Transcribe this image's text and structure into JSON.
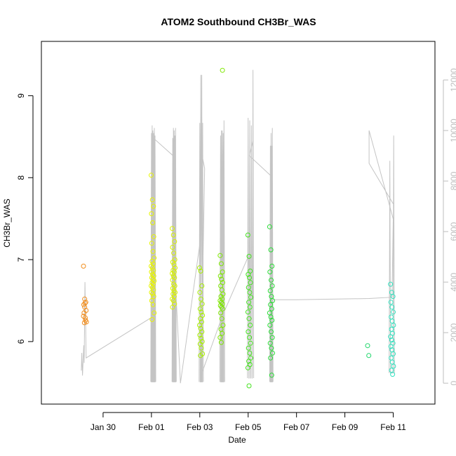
{
  "chart_data": {
    "type": "scatter",
    "title": "ATOM2 Southbound CH3Br_WAS",
    "xlabel": "Date",
    "ylabel": "CH3Br_WAS",
    "x_ticks": [
      {
        "day": 29,
        "label": "Jan 30"
      },
      {
        "day": 31,
        "label": "Feb 01"
      },
      {
        "day": 33,
        "label": "Feb 03"
      },
      {
        "day": 35,
        "label": "Feb 05"
      },
      {
        "day": 37,
        "label": "Feb 07"
      },
      {
        "day": 39,
        "label": "Feb 09"
      },
      {
        "day": 41,
        "label": "Feb 11"
      }
    ],
    "xlim": [
      27.0,
      42.0
    ],
    "ylim": [
      5.4,
      9.5
    ],
    "y_ticks": [
      "6",
      "7",
      "8",
      "9"
    ],
    "y2lim": [
      -300,
      13000
    ],
    "y2_ticks": [
      "0",
      "2000",
      "4000",
      "6000",
      "8000",
      "10000",
      "12000"
    ],
    "point_groups": [
      {
        "center": 28.25,
        "color": "#f28e1e",
        "values": [
          6.92,
          6.52,
          6.48,
          6.45,
          6.47,
          6.38,
          6.35,
          6.29,
          6.24,
          6.23,
          6.26,
          6.31,
          6.42
        ]
      },
      {
        "center": 31.05,
        "color": "#e8f500",
        "values": [
          8.03,
          7.73,
          7.65,
          7.56,
          7.45,
          7.28,
          7.2,
          7.1,
          7.02,
          6.98,
          6.95,
          6.92,
          6.9,
          6.87,
          6.85,
          6.82,
          6.8,
          6.78,
          6.76,
          6.74,
          6.72,
          6.7,
          6.68,
          6.66,
          6.63,
          6.6,
          6.58,
          6.55,
          6.5,
          6.45,
          6.35,
          6.27
        ]
      },
      {
        "center": 31.92,
        "color": "#d8f200",
        "values": [
          7.38,
          7.3,
          7.22,
          7.15,
          7.08,
          7.0,
          6.97,
          6.94,
          6.9,
          6.87,
          6.85,
          6.83,
          6.8,
          6.78,
          6.75,
          6.7,
          6.68,
          6.65,
          6.62,
          6.6,
          6.58,
          6.55,
          6.52,
          6.5,
          6.46,
          6.42
        ]
      },
      {
        "center": 33.05,
        "color": "#a8ef00",
        "values": [
          6.9,
          6.86,
          6.68,
          6.6,
          6.52,
          6.46,
          6.4,
          6.36,
          6.32,
          6.28,
          6.24,
          6.2,
          6.16,
          6.12,
          6.08,
          6.04,
          6.0,
          5.97,
          5.92,
          5.85,
          5.83
        ]
      },
      {
        "center": 33.9,
        "color": "#7ee800",
        "values": [
          7.05,
          6.95,
          6.85,
          6.8,
          6.76,
          6.72,
          6.68,
          6.63,
          6.58,
          6.55,
          6.52,
          6.5,
          6.48,
          6.46,
          6.44,
          6.42,
          6.4,
          6.35,
          6.28,
          6.2,
          6.15,
          6.1,
          6.05,
          5.99,
          9.31
        ]
      },
      {
        "center": 35.05,
        "color": "#44e21e",
        "values": [
          7.3,
          7.04,
          6.86,
          6.82,
          6.78,
          6.72,
          6.66,
          6.6,
          6.54,
          6.48,
          6.42,
          6.36,
          6.28,
          6.2,
          6.12,
          6.05,
          5.98,
          5.92,
          5.86,
          5.8,
          5.76,
          5.72,
          5.68,
          5.46
        ]
      },
      {
        "center": 35.95,
        "color": "#28dc34",
        "values": [
          7.4,
          7.12,
          6.92,
          6.85,
          6.75,
          6.68,
          6.62,
          6.55,
          6.5,
          6.45,
          6.4,
          6.35,
          6.3,
          6.26,
          6.2,
          6.12,
          6.05,
          5.98,
          5.92,
          5.86,
          5.8,
          5.59
        ]
      },
      {
        "center": 40.0,
        "color": "#1fd66a",
        "values": [
          5.95,
          5.83
        ]
      },
      {
        "center": 40.95,
        "color": "#33e2c0",
        "values": [
          6.7,
          6.6,
          6.55,
          6.48,
          6.42,
          6.36,
          6.3,
          6.25,
          6.2,
          6.15,
          6.1,
          6.06,
          6.02,
          5.98,
          5.94,
          5.9,
          5.85,
          5.8,
          5.75,
          5.7,
          5.65,
          5.6
        ]
      }
    ],
    "altitude_bursts": [
      {
        "start": 31.0,
        "end": 31.15,
        "count": 6,
        "hi": [
          9900,
          10200,
          10000,
          9900,
          10100,
          9800
        ],
        "lo": 50
      },
      {
        "start": 31.88,
        "end": 32.0,
        "count": 5,
        "hi": [
          9700,
          10100,
          10000,
          9800,
          10100
        ],
        "lo": 50
      },
      {
        "start": 33.0,
        "end": 33.12,
        "count": 4,
        "hi": [
          10300,
          12200,
          12200,
          10300
        ],
        "lo": 50
      },
      {
        "start": 33.86,
        "end": 34.0,
        "count": 5,
        "hi": [
          9800,
          10000,
          10000,
          9900,
          10400
        ],
        "lo": 50
      },
      {
        "start": 35.0,
        "end": 35.2,
        "count": 4,
        "hi": [
          10500,
          10400,
          10200,
          12400
        ],
        "lo": 200
      },
      {
        "start": 35.92,
        "end": 36.0,
        "count": 4,
        "hi": [
          9400,
          9900,
          9400,
          10100
        ],
        "lo": 50
      },
      {
        "start": 40.86,
        "end": 41.02,
        "count": 2,
        "hi": [
          8800,
          9800
        ],
        "lo": 400
      }
    ],
    "altitude_line": [
      [
        28.1,
        500
      ],
      [
        28.12,
        1200
      ],
      [
        28.15,
        300
      ],
      [
        28.2,
        1500
      ],
      [
        28.22,
        800
      ],
      [
        28.25,
        4000
      ],
      [
        28.3,
        1000
      ],
      [
        31.0,
        2600
      ],
      [
        31.08,
        9700
      ],
      [
        31.9,
        9000
      ],
      [
        31.95,
        4800
      ],
      [
        32.2,
        0
      ],
      [
        33.0,
        5500
      ],
      [
        33.1,
        9000
      ],
      [
        33.2,
        8500
      ],
      [
        33.05,
        300
      ],
      [
        33.95,
        2700
      ],
      [
        35.0,
        5000
      ],
      [
        35.2,
        3300
      ],
      [
        35.2,
        9600
      ],
      [
        35.05,
        9000
      ],
      [
        35.95,
        8200
      ],
      [
        36.0,
        3300
      ],
      [
        37.0,
        3300
      ],
      [
        40.0,
        3350
      ],
      [
        40.95,
        3400
      ],
      [
        41.0,
        6500
      ],
      [
        40.0,
        10000
      ],
      [
        40.0,
        8700
      ],
      [
        41.0,
        7100
      ]
    ]
  }
}
